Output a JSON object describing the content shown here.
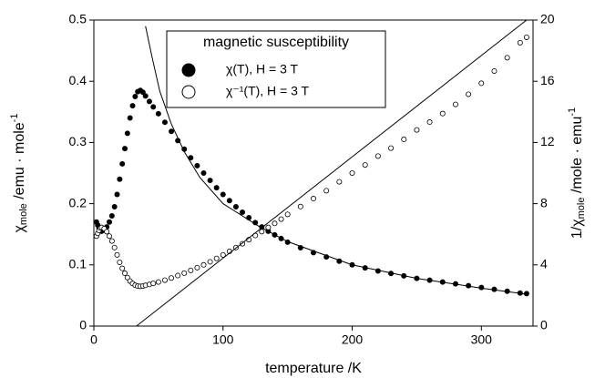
{
  "chart_data": {
    "type": "scatter",
    "xlabel": "temperature /K",
    "ylabel": {
      "base": "χ",
      "sub": "mole",
      "rest": " /emu · mole",
      "sup": "-1"
    },
    "y2label": {
      "base": "1/χ",
      "sub": "mole",
      "rest": " /mole · emu",
      "sup": "-1"
    },
    "legend_title": "magnetic susceptibility",
    "legend": "upper-left",
    "xlim": [
      0,
      340
    ],
    "xticks": [
      0,
      100,
      200,
      300
    ],
    "ylim": [
      0,
      0.5
    ],
    "yticks": [
      0,
      0.1,
      0.2,
      0.3,
      0.4,
      0.5
    ],
    "y2lim": [
      0,
      20
    ],
    "y2ticks": [
      0,
      4,
      8,
      12,
      16,
      20
    ],
    "grid": false,
    "series": [
      {
        "name": "χ(T), H = 3 T",
        "color": "#000000",
        "marker": "filled",
        "axis": "y",
        "x": [
          2,
          3,
          4,
          5,
          6,
          8,
          10,
          12,
          14,
          16,
          18,
          20,
          22,
          24,
          26,
          28,
          30,
          32,
          34,
          36,
          38,
          40,
          43,
          46,
          50,
          55,
          60,
          65,
          70,
          75,
          80,
          85,
          90,
          95,
          100,
          105,
          110,
          115,
          120,
          125,
          130,
          135,
          140,
          145,
          150,
          160,
          170,
          180,
          190,
          200,
          210,
          220,
          230,
          240,
          250,
          260,
          270,
          280,
          290,
          300,
          310,
          320,
          330,
          335
        ],
        "values": [
          0.17,
          0.165,
          0.16,
          0.156,
          0.155,
          0.157,
          0.162,
          0.17,
          0.18,
          0.195,
          0.215,
          0.24,
          0.265,
          0.29,
          0.315,
          0.34,
          0.36,
          0.375,
          0.383,
          0.385,
          0.382,
          0.376,
          0.367,
          0.358,
          0.347,
          0.333,
          0.318,
          0.303,
          0.289,
          0.275,
          0.262,
          0.25,
          0.238,
          0.226,
          0.215,
          0.205,
          0.195,
          0.186,
          0.177,
          0.169,
          0.162,
          0.155,
          0.149,
          0.143,
          0.137,
          0.128,
          0.12,
          0.113,
          0.106,
          0.1,
          0.095,
          0.09,
          0.086,
          0.082,
          0.078,
          0.075,
          0.072,
          0.069,
          0.066,
          0.063,
          0.06,
          0.057,
          0.054,
          0.053
        ]
      },
      {
        "name": "χ⁻¹(T), H = 3 T",
        "color": "#000000",
        "marker": "open",
        "axis": "y2",
        "x": [
          2,
          3,
          4,
          5,
          6,
          8,
          10,
          12,
          14,
          16,
          18,
          20,
          22,
          24,
          26,
          28,
          30,
          32,
          34,
          36,
          38,
          40,
          43,
          46,
          50,
          55,
          60,
          65,
          70,
          75,
          80,
          85,
          90,
          95,
          100,
          105,
          110,
          115,
          120,
          125,
          130,
          135,
          140,
          145,
          150,
          160,
          170,
          180,
          190,
          200,
          210,
          220,
          230,
          240,
          250,
          260,
          270,
          280,
          290,
          300,
          310,
          320,
          330,
          335
        ],
        "values": [
          5.88,
          6.06,
          6.25,
          6.41,
          6.45,
          6.37,
          6.17,
          5.88,
          5.56,
          5.13,
          4.65,
          4.17,
          3.77,
          3.45,
          3.17,
          2.94,
          2.78,
          2.67,
          2.61,
          2.6,
          2.62,
          2.66,
          2.72,
          2.79,
          2.88,
          3.0,
          3.14,
          3.3,
          3.46,
          3.64,
          3.82,
          4.0,
          4.2,
          4.42,
          4.65,
          4.88,
          5.13,
          5.38,
          5.65,
          5.92,
          6.17,
          6.45,
          6.71,
          6.99,
          7.3,
          7.81,
          8.33,
          8.85,
          9.43,
          10,
          10.53,
          11.11,
          11.63,
          12.2,
          12.82,
          13.33,
          13.89,
          14.49,
          15.15,
          15.87,
          16.67,
          17.54,
          18.52,
          18.87
        ]
      },
      {
        "color": "#000000",
        "marker": "none",
        "axis": "y",
        "x": [
          40,
          45,
          51,
          60,
          70,
          82,
          100,
          127,
          150,
          200,
          250,
          300,
          335
        ],
        "values": [
          0.49,
          0.44,
          0.384,
          0.33,
          0.285,
          0.243,
          0.2,
          0.164,
          0.138,
          0.1,
          0.078,
          0.062,
          0.052
        ]
      },
      {
        "color": "#000000",
        "marker": "none",
        "axis": "y2",
        "x": [
          33,
          335
        ],
        "values": [
          0,
          20
        ]
      }
    ]
  }
}
